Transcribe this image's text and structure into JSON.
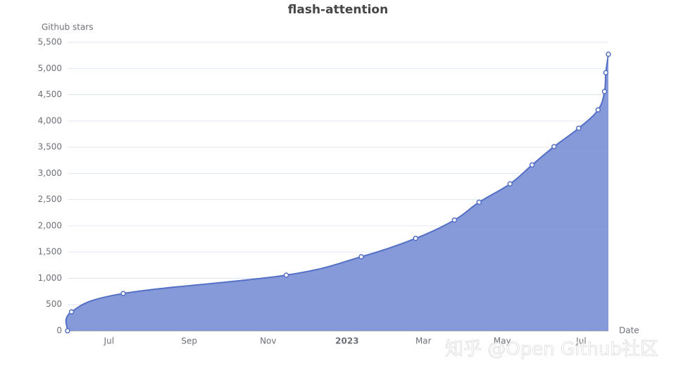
{
  "chart_data": {
    "type": "area",
    "title": "flash-attention",
    "y_label": "Github stars",
    "x_label": "Date",
    "watermark": "知乎 @Open Github社区",
    "x": [
      149,
      152,
      192,
      318,
      376,
      418,
      448,
      467,
      491,
      508,
      525,
      544,
      559,
      564,
      565,
      567
    ],
    "series": [
      {
        "name": "Github stars",
        "color": "#5470c6",
        "fill": "#8093d6",
        "values": [
          0,
          360,
          710,
          1060,
          1410,
          1760,
          2110,
          2450,
          2800,
          3160,
          3510,
          3860,
          4210,
          4560,
          4920,
          5270
        ]
      }
    ],
    "xlim": [
      149,
      567
    ],
    "xticks": [
      {
        "value": 181,
        "label": "Jul"
      },
      {
        "value": 243,
        "label": "Sep"
      },
      {
        "value": 304,
        "label": "Nov"
      },
      {
        "value": 365,
        "label": "2023"
      },
      {
        "value": 424,
        "label": "Mar"
      },
      {
        "value": 485,
        "label": "May"
      },
      {
        "value": 546,
        "label": "Jul"
      }
    ],
    "ylim": [
      0,
      5500
    ],
    "yticks": [
      0,
      500,
      {
        "value": 1000,
        "label": "1,000"
      },
      {
        "value": 1500,
        "label": "1,500"
      },
      {
        "value": 2000,
        "label": "2,000"
      },
      {
        "value": 2500,
        "label": "2,500"
      },
      {
        "value": 3000,
        "label": "3,000"
      },
      {
        "value": 3500,
        "label": "3,500"
      },
      {
        "value": 4000,
        "label": "4,000"
      },
      {
        "value": 4500,
        "label": "4,500"
      },
      {
        "value": 5000,
        "label": "5,000"
      },
      {
        "value": 5500,
        "label": "5,500"
      }
    ],
    "grid": true
  }
}
